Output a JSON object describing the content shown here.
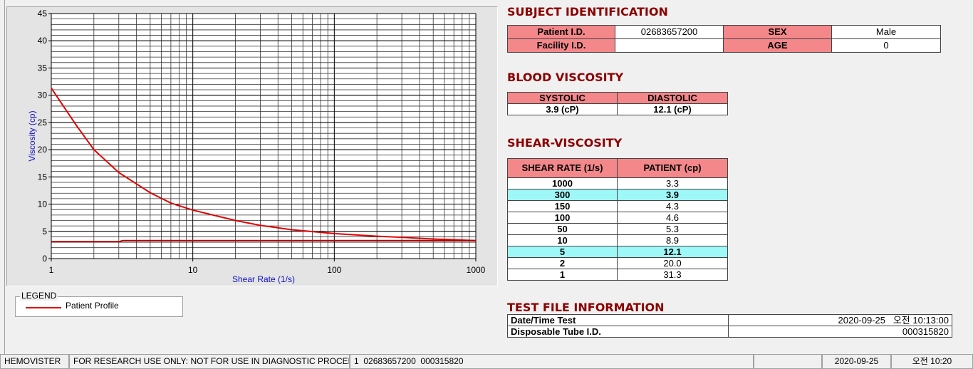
{
  "chart_data": {
    "type": "line",
    "y_label": "Viscosity (cp)",
    "x_label": "Shear Rate (1/s)",
    "xscale": "log",
    "xlim": [
      1,
      1000
    ],
    "xticks": [
      1,
      10,
      100,
      1000
    ],
    "ylim": [
      0,
      45
    ],
    "yticks": [
      0,
      5,
      10,
      15,
      20,
      25,
      30,
      35,
      40,
      45
    ],
    "grid": true,
    "legend_title": "LEGEND",
    "series": [
      {
        "name": "Patient Profile",
        "color": "#e00000",
        "x": [
          1,
          1.5,
          2,
          3,
          5,
          7,
          10,
          20,
          30,
          50,
          100,
          200,
          300,
          500,
          1000
        ],
        "values": [
          31.3,
          24.5,
          20.0,
          15.8,
          12.1,
          10.2,
          8.9,
          7.0,
          6.1,
          5.3,
          4.6,
          4.1,
          3.9,
          3.6,
          3.3
        ]
      },
      {
        "color": "#b00000",
        "x": [
          1,
          3,
          3.2,
          1000
        ],
        "values": [
          3.1,
          3.1,
          3.3,
          3.3
        ]
      }
    ]
  },
  "subject_identification": {
    "title": "SUBJECT IDENTIFICATION",
    "rows": [
      {
        "label": "Patient I.D.",
        "value": "02683657200",
        "label2": "SEX",
        "value2": "Male"
      },
      {
        "label": "Facility I.D.",
        "label2": "AGE",
        "value2": 0
      }
    ]
  },
  "blood_viscosity": {
    "title": "BLOOD VISCOSITY",
    "headers": [
      "SYSTOLIC",
      "DIASTOLIC"
    ],
    "values": [
      "3.9 (cP)",
      "12.1 (cP)"
    ]
  },
  "shear_viscosity": {
    "title": "SHEAR-VISCOSITY",
    "headers": [
      "SHEAR RATE (1/s)",
      "PATIENT (cp)"
    ],
    "rows": [
      {
        "shear_rate": 1000,
        "patient": "3.3"
      },
      {
        "shear_rate": 300,
        "patient": "3.9",
        "highlight": true
      },
      {
        "shear_rate": 150,
        "patient": "4.3"
      },
      {
        "shear_rate": 100,
        "patient": "4.6"
      },
      {
        "shear_rate": 50,
        "patient": "5.3"
      },
      {
        "shear_rate": 10,
        "patient": "8.9"
      },
      {
        "shear_rate": 5,
        "patient": "12.1",
        "highlight": true
      },
      {
        "shear_rate": 2,
        "patient": "20.0"
      },
      {
        "shear_rate": 1,
        "patient": "31.3"
      }
    ]
  },
  "test_file_information": {
    "title": "TEST FILE INFORMATION",
    "rows": [
      {
        "label": "Date/Time Test",
        "value": "2020-09-25   오전 10:13:00"
      },
      {
        "label": "Disposable Tube I.D.",
        "value": "000315820"
      }
    ]
  },
  "status_bar": {
    "app": "HEMOVISTER",
    "notice": "FOR RESEARCH USE ONLY: NOT FOR USE IN DIAGNOSTIC PROCEDURES",
    "record": "1  02683657200  000315820",
    "date": "2020-09-25",
    "time": "오전 10:20"
  }
}
